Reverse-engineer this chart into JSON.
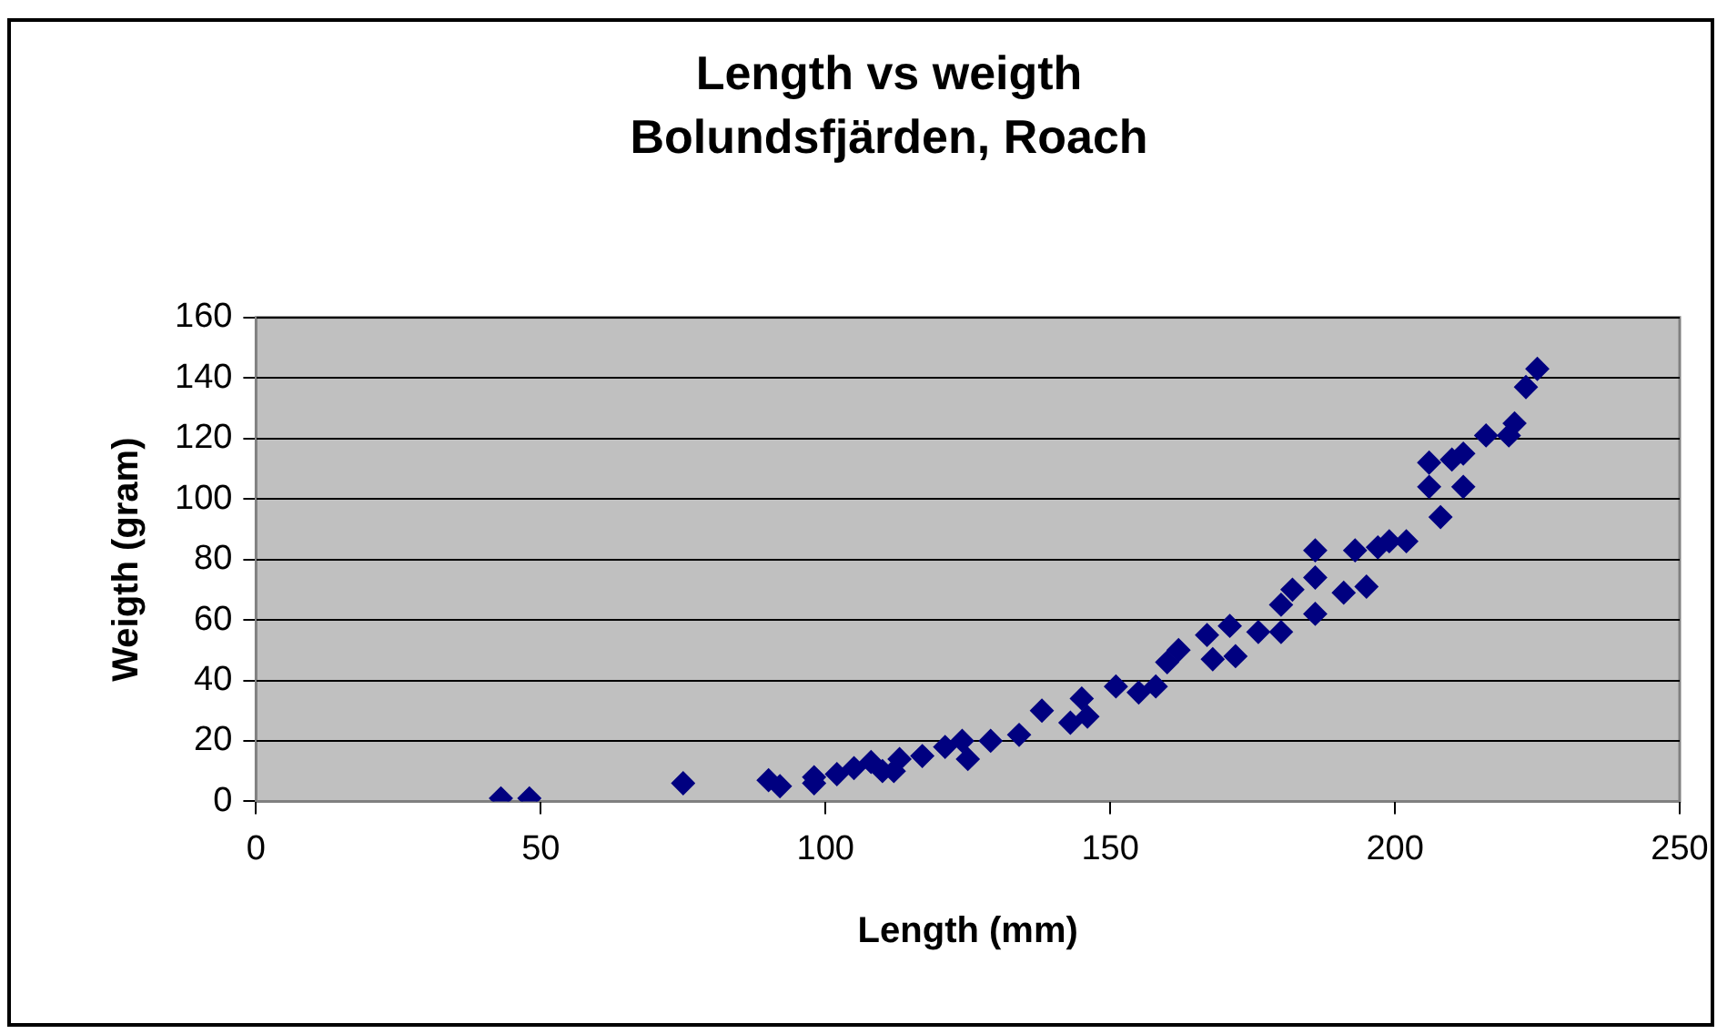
{
  "chart_data": {
    "type": "scatter",
    "title": "Length vs weigth",
    "subtitle": "Bolundsfjärden, Roach",
    "xlabel": "Length (mm)",
    "ylabel": "Weigth (gram)",
    "xlim": [
      0,
      250
    ],
    "xticks": [
      0,
      50,
      100,
      150,
      200,
      250
    ],
    "ylim": [
      0,
      160
    ],
    "yticks": [
      0,
      20,
      40,
      60,
      80,
      100,
      120,
      140,
      160
    ],
    "grid": "y",
    "legend": false,
    "marker": "diamond",
    "series": [
      {
        "color": "#000080",
        "x": [
          43,
          48,
          75,
          90,
          92,
          98,
          98,
          102,
          105,
          108,
          110,
          112,
          113,
          124,
          117,
          121,
          125,
          129,
          134,
          138,
          143,
          146,
          145,
          151,
          155,
          158,
          160,
          162,
          167,
          168,
          171,
          172,
          176,
          180,
          180,
          182,
          186,
          186,
          186,
          191,
          195,
          193,
          197,
          199,
          202,
          206,
          206,
          208,
          210,
          212,
          212,
          216,
          220,
          221,
          223,
          225
        ],
        "values": [
          1,
          1,
          6,
          7,
          5,
          6,
          8,
          9,
          11,
          13,
          10,
          10,
          14,
          20,
          15,
          18,
          14,
          20,
          22,
          30,
          26,
          28,
          34,
          38,
          36,
          38,
          46,
          50,
          55,
          47,
          58,
          48,
          56,
          56,
          65,
          70,
          74,
          62,
          83,
          69,
          71,
          83,
          84,
          86,
          86,
          112,
          104,
          94,
          113,
          115,
          104,
          121,
          121,
          125,
          137,
          143
        ]
      }
    ]
  }
}
